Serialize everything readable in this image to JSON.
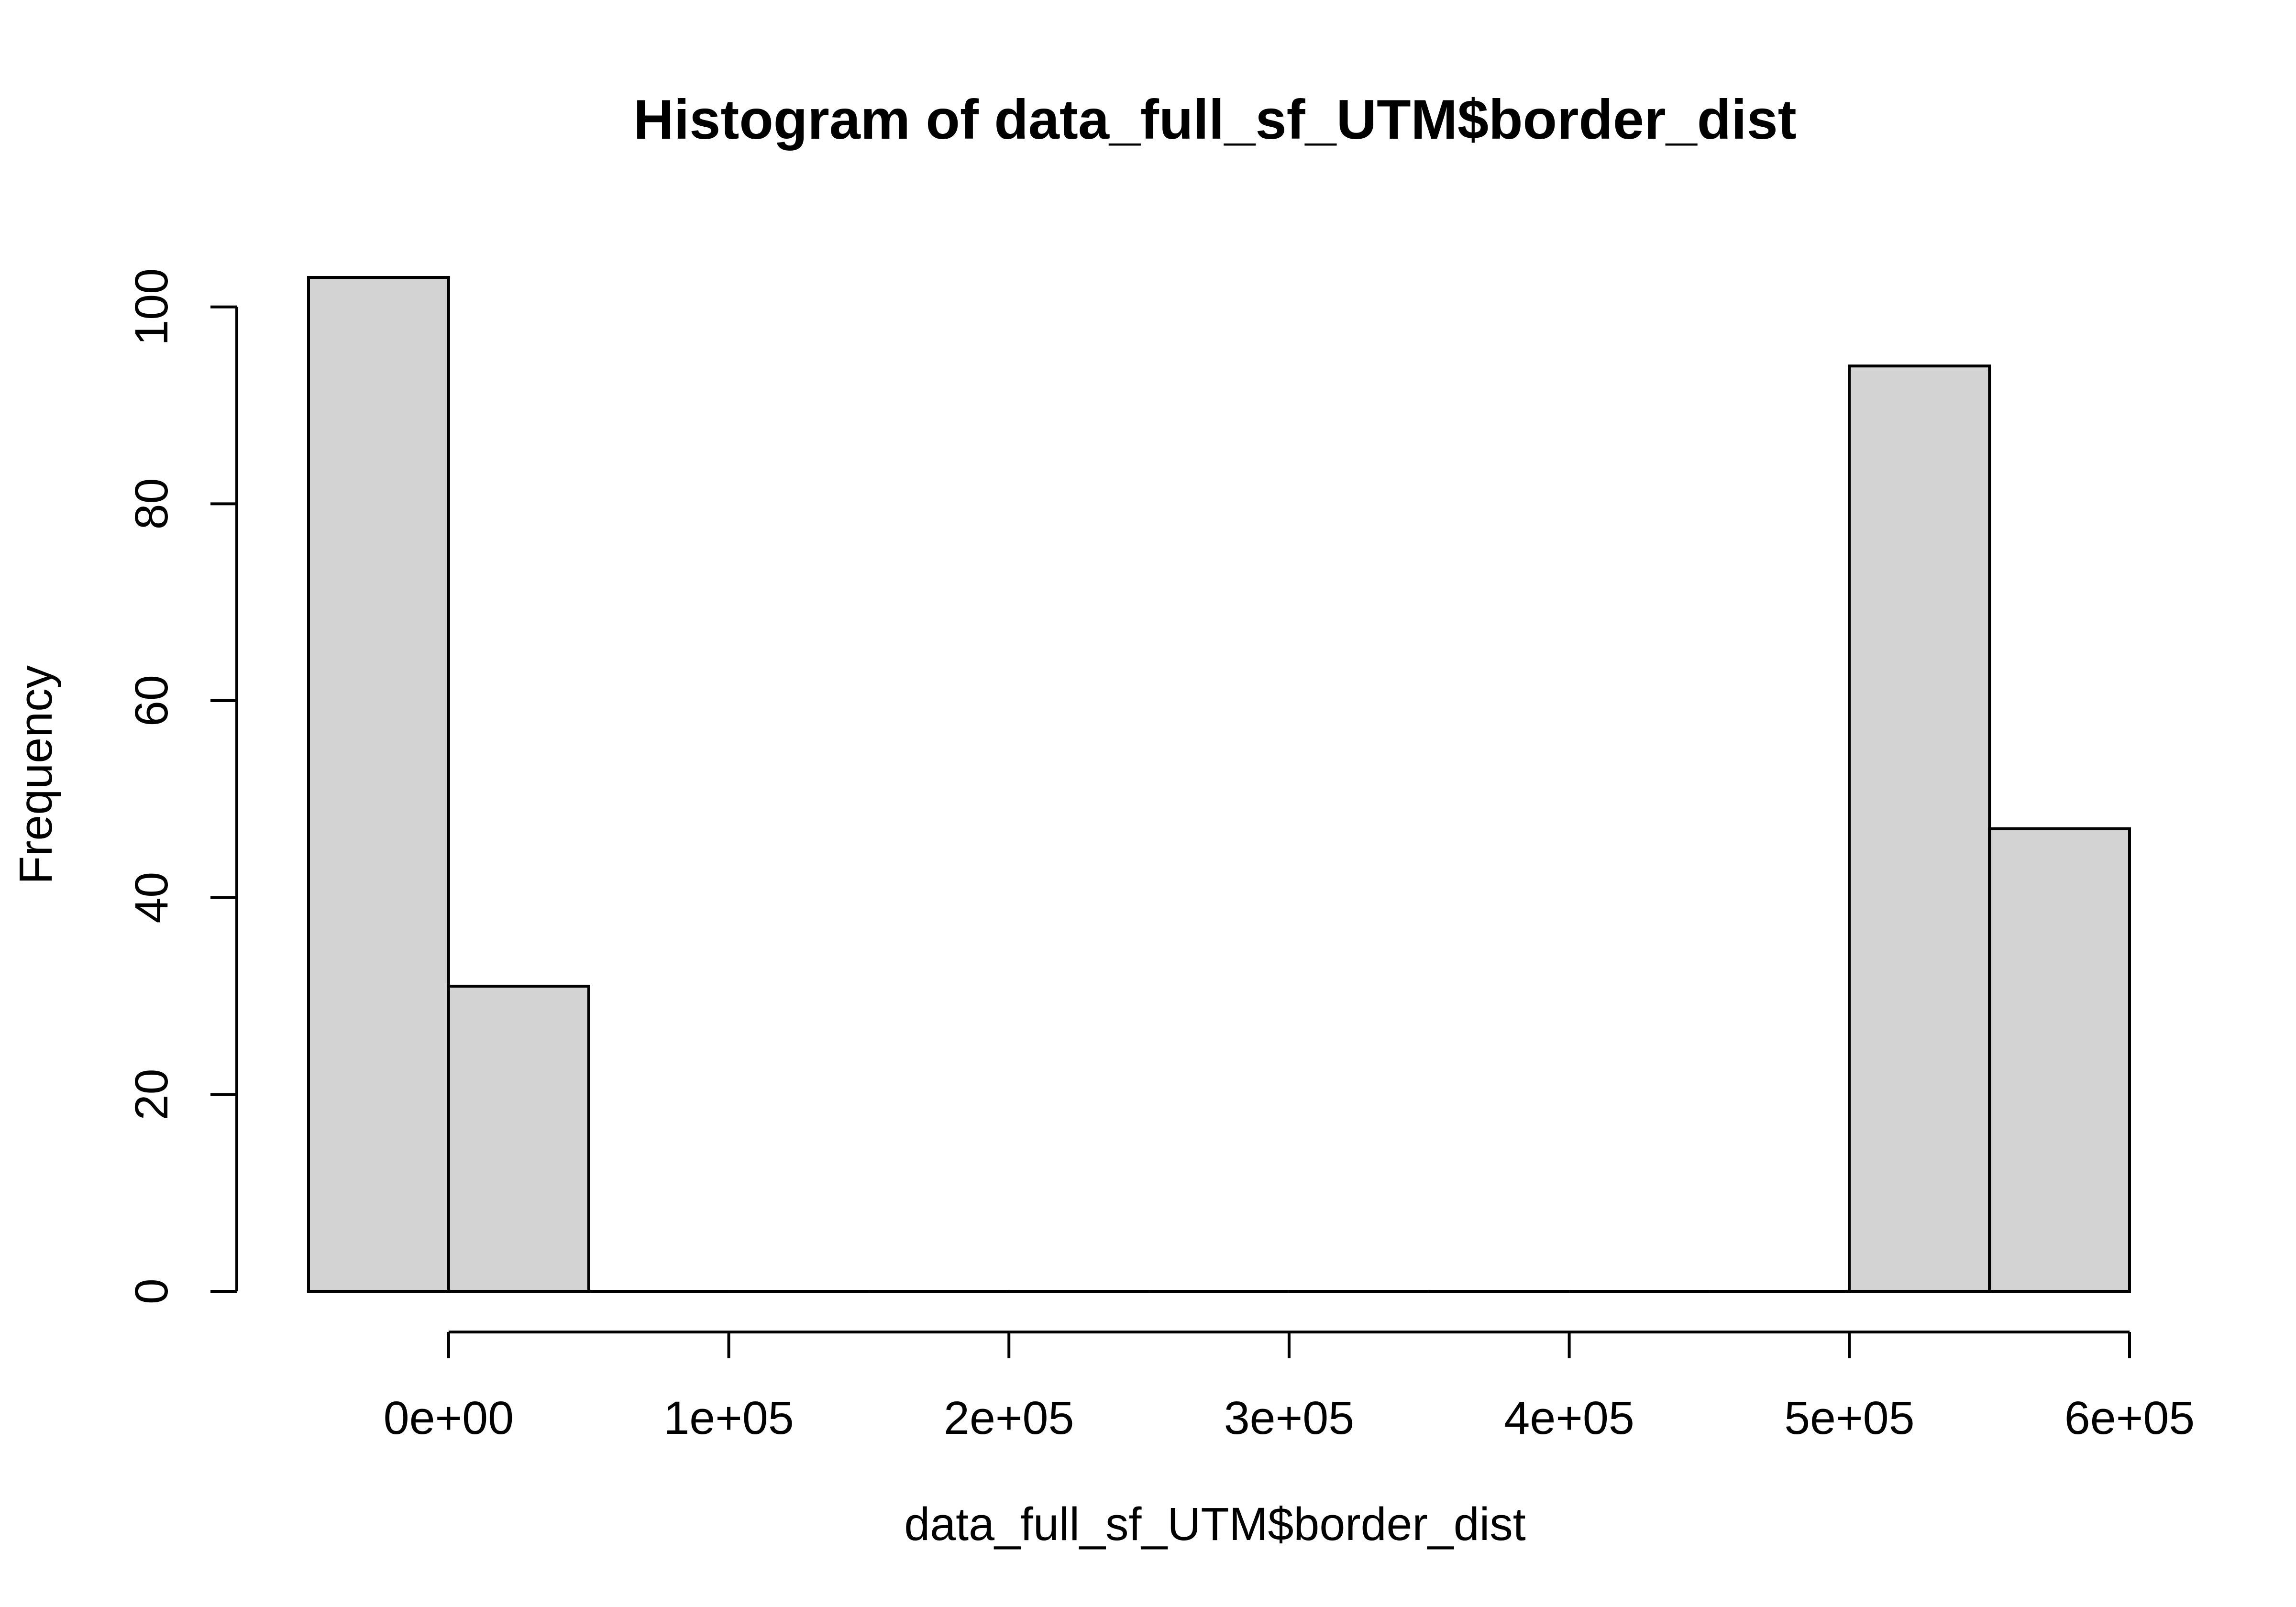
{
  "chart_data": {
    "type": "bar",
    "title": "Histogram of data_full_sf_UTM$border_dist",
    "xlabel": "data_full_sf_UTM$border_dist",
    "ylabel": "Frequency",
    "bins": [
      {
        "start": -50000,
        "end": 0,
        "count": 103
      },
      {
        "start": 0,
        "end": 50000,
        "count": 31
      },
      {
        "start": 50000,
        "end": 100000,
        "count": 0
      },
      {
        "start": 100000,
        "end": 150000,
        "count": 0
      },
      {
        "start": 150000,
        "end": 200000,
        "count": 0
      },
      {
        "start": 200000,
        "end": 250000,
        "count": 0
      },
      {
        "start": 250000,
        "end": 300000,
        "count": 0
      },
      {
        "start": 300000,
        "end": 350000,
        "count": 0
      },
      {
        "start": 350000,
        "end": 400000,
        "count": 0
      },
      {
        "start": 400000,
        "end": 450000,
        "count": 0
      },
      {
        "start": 450000,
        "end": 500000,
        "count": 0
      },
      {
        "start": 500000,
        "end": 550000,
        "count": 94
      },
      {
        "start": 550000,
        "end": 600000,
        "count": 47
      }
    ],
    "x_ticks": [
      {
        "value": 0,
        "label": "0e+00"
      },
      {
        "value": 100000,
        "label": "1e+05"
      },
      {
        "value": 200000,
        "label": "2e+05"
      },
      {
        "value": 300000,
        "label": "3e+05"
      },
      {
        "value": 400000,
        "label": "4e+05"
      },
      {
        "value": 500000,
        "label": "5e+05"
      },
      {
        "value": 600000,
        "label": "6e+05"
      }
    ],
    "y_ticks": [
      {
        "value": 0,
        "label": "0"
      },
      {
        "value": 20,
        "label": "20"
      },
      {
        "value": 40,
        "label": "40"
      },
      {
        "value": 60,
        "label": "60"
      },
      {
        "value": 80,
        "label": "80"
      },
      {
        "value": 100,
        "label": "100"
      }
    ],
    "xlim": [
      -50000,
      600000
    ],
    "ylim": [
      0,
      103
    ],
    "grid": false,
    "bar_fill": "#d3d3d3",
    "bar_stroke": "#000000"
  }
}
